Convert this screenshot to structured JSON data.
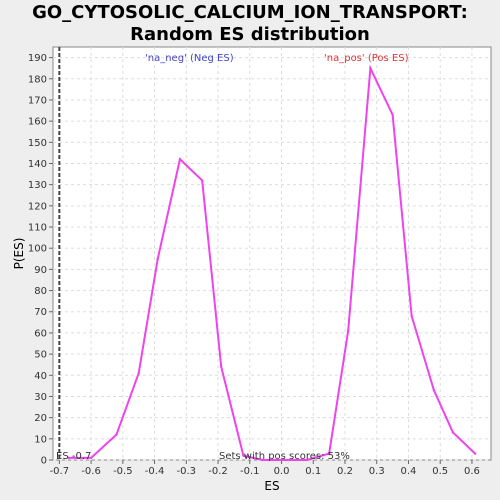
{
  "chart_data": {
    "type": "line",
    "title": "GO_CYTOSOLIC_CALCIUM_ION_TRANSPORT: Random ES distribution",
    "xlabel": "ES",
    "ylabel": "P(ES)",
    "xlim": [
      -0.72,
      0.66
    ],
    "ylim": [
      0,
      195
    ],
    "x_ticks": [
      "-0.7",
      "-0.6",
      "-0.5",
      "-0.4",
      "-0.3",
      "-0.2",
      "-0.1",
      "0.0",
      "0.1",
      "0.2",
      "0.3",
      "0.4",
      "0.5",
      "0.6"
    ],
    "y_ticks": [
      "0",
      "10",
      "20",
      "30",
      "40",
      "50",
      "60",
      "70",
      "80",
      "90",
      "100",
      "110",
      "120",
      "130",
      "140",
      "150",
      "160",
      "170",
      "180",
      "190"
    ],
    "grid": true,
    "series": [
      {
        "name": "",
        "color": "#ee44ee",
        "x": [
          -0.67,
          -0.6,
          -0.52,
          -0.45,
          -0.39,
          -0.32,
          -0.25,
          -0.19,
          -0.12,
          -0.06,
          0.02,
          0.08,
          0.15,
          0.21,
          0.28,
          0.35,
          0.41,
          0.48,
          0.54,
          0.61
        ],
        "y": [
          1,
          1,
          12,
          41,
          95,
          142,
          132,
          44,
          2,
          0,
          0,
          0,
          3,
          61,
          185,
          163,
          68,
          33,
          13,
          3
        ]
      }
    ],
    "es_marker": {
      "x": -0.7,
      "label": "ES -0.7"
    },
    "annotations": {
      "neg_label": "'na_neg' (Neg ES)",
      "pos_label": "'na_pos' (Pos ES)",
      "sets_label": "Sets with pos scores: 53%"
    },
    "colors": {
      "neg": "#4444cc",
      "pos": "#dd3333",
      "marker": "#444444"
    }
  }
}
